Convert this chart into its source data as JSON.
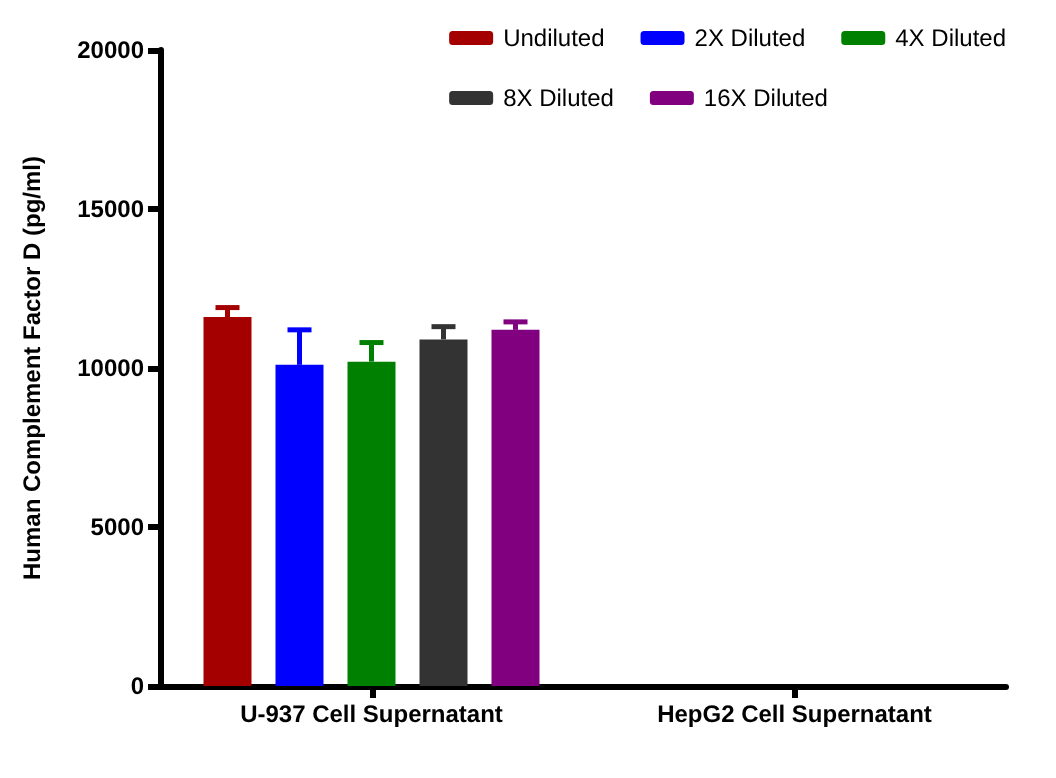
{
  "chart_data": {
    "type": "bar",
    "ylabel": "Human Complement Factor D (pg/ml)",
    "categories": [
      "U-937 Cell Supernatant",
      "HepG2 Cell Supernatant"
    ],
    "series": [
      {
        "name": "Undiluted",
        "color": "#a50000",
        "values": [
          11600,
          null
        ],
        "errors": [
          [
            11600,
            11900
          ],
          null
        ]
      },
      {
        "name": "2X Diluted",
        "color": "#0000ff",
        "values": [
          10100,
          null
        ],
        "errors": [
          [
            10100,
            11200
          ],
          null
        ]
      },
      {
        "name": "4X Diluted",
        "color": "#008000",
        "values": [
          10200,
          null
        ],
        "errors": [
          [
            10200,
            10800
          ],
          null
        ]
      },
      {
        "name": "8X Diluted",
        "color": "#333333",
        "values": [
          10900,
          null
        ],
        "errors": [
          [
            10900,
            11300
          ],
          null
        ]
      },
      {
        "name": "16X Diluted",
        "color": "#800080",
        "values": [
          11200,
          null
        ],
        "errors": [
          [
            11200,
            11450
          ],
          null
        ]
      }
    ],
    "ylim": [
      0,
      20000
    ],
    "yticks": [
      0,
      5000,
      10000,
      15000,
      20000
    ],
    "grid": false,
    "legend": "top right"
  }
}
